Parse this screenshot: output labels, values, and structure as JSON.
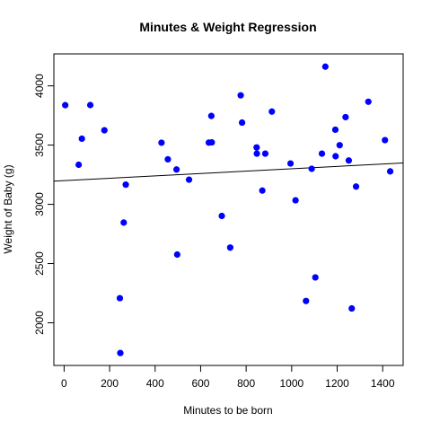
{
  "chart_data": {
    "type": "scatter",
    "title": "Minutes & Weight Regression",
    "xlabel": "Minutes to be born",
    "ylabel": "Weight of Baby (g)",
    "xlim": [
      -45,
      1490
    ],
    "ylim": [
      1640,
      4270
    ],
    "xticks": [
      0,
      200,
      400,
      600,
      800,
      1000,
      1200,
      1400
    ],
    "yticks": [
      2000,
      2500,
      3000,
      3500,
      4000
    ],
    "grid": false,
    "legend": "none",
    "point_color": "#0000ff",
    "line_color": "#000000",
    "regression": {
      "intercept": 3200,
      "slope": 0.1
    },
    "x": [
      5,
      64,
      78,
      115,
      177,
      245,
      247,
      262,
      271,
      428,
      456,
      494,
      497,
      549,
      636,
      647,
      649,
      693,
      730,
      776,
      782,
      913,
      846,
      847,
      871,
      884,
      995,
      1017,
      1063,
      1088,
      1104,
      1133,
      1148,
      1192,
      1193,
      1211,
      1237,
      1251,
      1264,
      1283,
      1337,
      1410,
      1433
    ],
    "y": [
      3837,
      3334,
      3554,
      3838,
      3625,
      2208,
      1745,
      2846,
      3166,
      3520,
      3380,
      3294,
      2576,
      3208,
      3521,
      3746,
      3523,
      2902,
      2635,
      3920,
      3690,
      3783,
      3480,
      3428,
      3116,
      3428,
      3345,
      3034,
      2184,
      3300,
      2383,
      3428,
      4162,
      3630,
      3406,
      3499,
      3736,
      3370,
      2121,
      3150,
      3866,
      3542,
      3278
    ]
  }
}
